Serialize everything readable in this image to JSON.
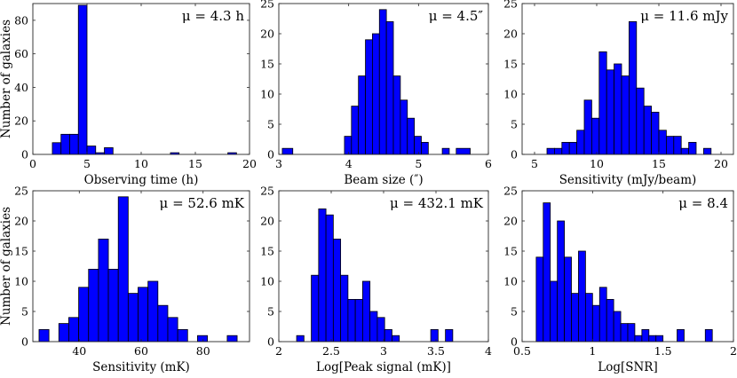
{
  "figure": {
    "ylabel": "Number of galaxies"
  },
  "chart_data": [
    {
      "type": "bar",
      "histogram": true,
      "annotation": "μ = 4.3 h",
      "xlabel": "Observing time (h)",
      "ylabel": "Number of galaxies",
      "xlim": [
        0,
        20
      ],
      "ylim": [
        0,
        90
      ],
      "xticks": [
        "0",
        "5",
        "10",
        "15",
        "20"
      ],
      "yticks": [
        "0",
        "20",
        "40",
        "60",
        "80"
      ],
      "bins": [
        [
          1.0,
          1.8,
          0
        ],
        [
          1.8,
          2.6,
          7
        ],
        [
          2.6,
          3.4,
          12
        ],
        [
          3.4,
          4.2,
          12
        ],
        [
          4.2,
          5.0,
          89
        ],
        [
          5.0,
          5.8,
          5
        ],
        [
          5.8,
          6.6,
          1
        ],
        [
          6.6,
          7.4,
          4
        ],
        [
          7.4,
          8.2,
          0
        ],
        [
          12.7,
          13.5,
          1
        ],
        [
          18.0,
          18.8,
          1
        ]
      ]
    },
    {
      "type": "bar",
      "histogram": true,
      "annotation": "μ = 4.5″",
      "xlabel": "Beam size (″)",
      "ylabel": "",
      "xlim": [
        3,
        6
      ],
      "ylim": [
        0,
        25
      ],
      "xticks": [
        "3",
        "4",
        "5",
        "6"
      ],
      "yticks": [
        "0",
        "5",
        "10",
        "15",
        "20",
        "25"
      ],
      "bins": [
        [
          3.05,
          3.2,
          1
        ],
        [
          3.94,
          4.04,
          3
        ],
        [
          4.04,
          4.14,
          8
        ],
        [
          4.14,
          4.24,
          13
        ],
        [
          4.24,
          4.34,
          19
        ],
        [
          4.34,
          4.44,
          20
        ],
        [
          4.44,
          4.54,
          24
        ],
        [
          4.54,
          4.64,
          22
        ],
        [
          4.64,
          4.74,
          13
        ],
        [
          4.74,
          4.84,
          9
        ],
        [
          4.84,
          4.94,
          6
        ],
        [
          4.94,
          5.04,
          3
        ],
        [
          5.04,
          5.14,
          2
        ],
        [
          5.14,
          5.24,
          0
        ],
        [
          5.34,
          5.44,
          1
        ],
        [
          5.54,
          5.74,
          1
        ]
      ]
    },
    {
      "type": "bar",
      "histogram": true,
      "annotation": "μ = 11.6 mJy",
      "xlabel": "Sensitivity (mJy/beam)",
      "ylabel": "",
      "xlim": [
        4,
        21
      ],
      "ylim": [
        0,
        25
      ],
      "xticks": [
        "5",
        "10",
        "15",
        "20"
      ],
      "yticks": [
        "0",
        "5",
        "10",
        "15",
        "20",
        "25"
      ],
      "bins": [
        [
          6.0,
          6.6,
          1
        ],
        [
          6.6,
          7.2,
          1
        ],
        [
          7.2,
          7.8,
          2
        ],
        [
          7.8,
          8.4,
          2
        ],
        [
          8.4,
          9.0,
          4
        ],
        [
          9.0,
          9.6,
          9
        ],
        [
          9.6,
          10.2,
          6
        ],
        [
          10.2,
          10.8,
          17
        ],
        [
          10.8,
          11.4,
          14
        ],
        [
          11.4,
          12.0,
          15
        ],
        [
          12.0,
          12.6,
          13
        ],
        [
          12.6,
          13.2,
          22
        ],
        [
          13.2,
          13.8,
          11
        ],
        [
          13.8,
          14.4,
          8
        ],
        [
          14.4,
          15.0,
          7
        ],
        [
          15.0,
          15.6,
          4
        ],
        [
          15.6,
          16.2,
          3
        ],
        [
          16.2,
          16.8,
          3
        ],
        [
          16.8,
          17.4,
          1
        ],
        [
          17.4,
          18.0,
          2
        ],
        [
          18.6,
          19.2,
          1
        ]
      ]
    },
    {
      "type": "bar",
      "histogram": true,
      "annotation": "μ = 52.6 mK",
      "xlabel": "Sensitivity (mK)",
      "ylabel": "Number of galaxies",
      "xlim": [
        25,
        95
      ],
      "ylim": [
        0,
        25
      ],
      "xticks": [
        "40",
        "60",
        "80"
      ],
      "yticks": [
        "0",
        "5",
        "10",
        "15",
        "20",
        "25"
      ],
      "bins": [
        [
          27.0,
          30.2,
          2
        ],
        [
          30.2,
          33.4,
          0
        ],
        [
          33.4,
          36.6,
          3
        ],
        [
          36.6,
          39.8,
          4
        ],
        [
          39.8,
          43.0,
          9
        ],
        [
          43.0,
          46.2,
          12
        ],
        [
          46.2,
          49.4,
          17
        ],
        [
          49.4,
          52.6,
          12
        ],
        [
          52.6,
          55.8,
          24
        ],
        [
          55.8,
          59.0,
          8
        ],
        [
          59.0,
          62.2,
          9
        ],
        [
          62.2,
          65.4,
          10
        ],
        [
          65.4,
          68.6,
          6
        ],
        [
          68.6,
          71.8,
          4
        ],
        [
          71.8,
          75.0,
          2
        ],
        [
          75.0,
          78.2,
          0
        ],
        [
          78.2,
          81.4,
          1
        ],
        [
          81.4,
          84.6,
          0
        ],
        [
          84.6,
          87.8,
          0
        ],
        [
          87.8,
          91.0,
          1
        ]
      ]
    },
    {
      "type": "bar",
      "histogram": true,
      "annotation": "μ = 432.1 mK",
      "xlabel": "Log[Peak signal (mK)]",
      "ylabel": "",
      "xlim": [
        2,
        4
      ],
      "ylim": [
        0,
        25
      ],
      "xticks": [
        "2",
        "2.5",
        "3",
        "3.5",
        "4"
      ],
      "yticks": [
        "0",
        "5",
        "10",
        "15",
        "20",
        "25"
      ],
      "bins": [
        [
          2.17,
          2.24,
          1
        ],
        [
          2.24,
          2.31,
          0
        ],
        [
          2.31,
          2.38,
          11
        ],
        [
          2.38,
          2.45,
          22
        ],
        [
          2.45,
          2.52,
          21
        ],
        [
          2.52,
          2.59,
          17
        ],
        [
          2.59,
          2.66,
          11
        ],
        [
          2.66,
          2.73,
          7
        ],
        [
          2.73,
          2.8,
          7
        ],
        [
          2.8,
          2.87,
          10
        ],
        [
          2.87,
          2.94,
          5
        ],
        [
          2.94,
          3.01,
          4
        ],
        [
          3.01,
          3.08,
          2
        ],
        [
          3.08,
          3.15,
          1
        ],
        [
          3.45,
          3.52,
          2
        ],
        [
          3.59,
          3.66,
          2
        ]
      ]
    },
    {
      "type": "bar",
      "histogram": true,
      "annotation": "μ = 8.4",
      "xlabel": "Log[SNR]",
      "ylabel": "",
      "xlim": [
        0.5,
        2
      ],
      "ylim": [
        0,
        25
      ],
      "xticks": [
        "0.5",
        "1",
        "1.5",
        "2"
      ],
      "yticks": [
        "0",
        "5",
        "10",
        "15",
        "20",
        "25"
      ],
      "bins": [
        [
          0.6,
          0.65,
          14
        ],
        [
          0.65,
          0.7,
          23
        ],
        [
          0.7,
          0.75,
          10
        ],
        [
          0.75,
          0.8,
          20
        ],
        [
          0.8,
          0.85,
          14
        ],
        [
          0.85,
          0.9,
          8
        ],
        [
          0.9,
          0.95,
          15
        ],
        [
          0.95,
          1.0,
          8
        ],
        [
          1.0,
          1.05,
          6
        ],
        [
          1.05,
          1.1,
          9
        ],
        [
          1.1,
          1.15,
          7
        ],
        [
          1.15,
          1.2,
          5
        ],
        [
          1.2,
          1.25,
          3
        ],
        [
          1.25,
          1.3,
          3
        ],
        [
          1.3,
          1.35,
          1
        ],
        [
          1.35,
          1.4,
          2
        ],
        [
          1.4,
          1.45,
          1
        ],
        [
          1.45,
          1.5,
          1
        ],
        [
          1.5,
          1.55,
          0
        ],
        [
          1.6,
          1.65,
          2
        ],
        [
          1.8,
          1.85,
          2
        ]
      ]
    }
  ],
  "colors": {
    "bar_fill": "#0000ff",
    "bar_edge": "#000000",
    "axis": "#262626"
  }
}
